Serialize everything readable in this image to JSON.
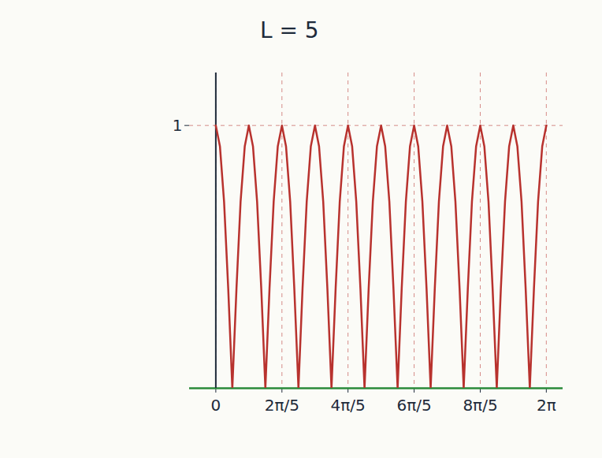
{
  "chart_data": {
    "type": "line",
    "title": "L = 5",
    "x": [
      0,
      0.079,
      0.157,
      0.236,
      0.314,
      0.393,
      0.471,
      0.55,
      0.628,
      0.707,
      0.785,
      0.864,
      0.942,
      1.021,
      1.1,
      1.178,
      1.257,
      1.335,
      1.414,
      1.492,
      1.571,
      1.649,
      1.728,
      1.806,
      1.885,
      1.963,
      2.042,
      2.121,
      2.199,
      2.278,
      2.356,
      2.435,
      2.513,
      2.592,
      2.67,
      2.749,
      2.827,
      2.906,
      2.985,
      3.063,
      3.142,
      3.22,
      3.299,
      3.377,
      3.456,
      3.534,
      3.613,
      3.691,
      3.77,
      3.848,
      3.927,
      4.006,
      4.084,
      4.163,
      4.241,
      4.32,
      4.398,
      4.477,
      4.555,
      4.634,
      4.712,
      4.791,
      4.869,
      4.948,
      5.027,
      5.105,
      5.184,
      5.262,
      5.341,
      5.419,
      5.498,
      5.576,
      5.655,
      5.733,
      5.812,
      5.89,
      5.969,
      6.048,
      6.126,
      6.205,
      6.283
    ],
    "values": [
      1,
      0.92,
      0.71,
      0.38,
      0,
      0.38,
      0.71,
      0.92,
      1,
      0.92,
      0.71,
      0.38,
      0,
      0.38,
      0.71,
      0.92,
      1,
      0.92,
      0.71,
      0.38,
      0,
      0.38,
      0.71,
      0.92,
      1,
      0.92,
      0.71,
      0.38,
      0,
      0.38,
      0.71,
      0.92,
      1,
      0.92,
      0.71,
      0.38,
      0,
      0.38,
      0.71,
      0.92,
      1,
      0.92,
      0.71,
      0.38,
      0,
      0.38,
      0.71,
      0.92,
      1,
      0.92,
      0.71,
      0.38,
      0,
      0.38,
      0.71,
      0.92,
      1,
      0.92,
      0.71,
      0.38,
      0,
      0.38,
      0.71,
      0.92,
      1,
      0.92,
      0.71,
      0.38,
      0,
      0.38,
      0.71,
      0.92,
      1,
      0.92,
      0.71,
      0.38,
      0,
      0.38,
      0.71,
      0.92,
      1
    ],
    "color": "#b8322e",
    "xlim": [
      -0.5,
      6.6
    ],
    "xticks": [
      0,
      {
        "value": 1.257,
        "label": "2π/5"
      },
      {
        "value": 2.513,
        "label": "4π/5"
      },
      {
        "value": 3.77,
        "label": "6π/5"
      },
      {
        "value": 5.027,
        "label": "8π/5"
      },
      {
        "value": 6.283,
        "label": "2π"
      }
    ],
    "ylim": [
      0,
      1.2
    ],
    "yticks": [
      1
    ],
    "grid": true
  }
}
